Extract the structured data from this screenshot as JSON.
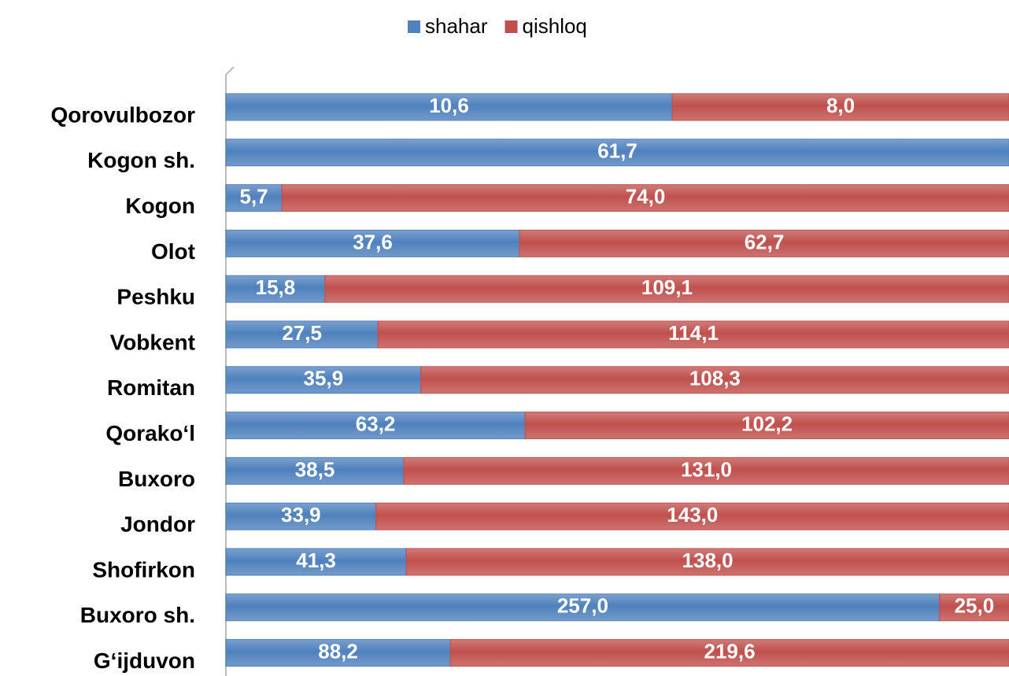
{
  "chart_data": {
    "type": "bar",
    "orientation": "horizontal",
    "stack": "percent",
    "legend": "top",
    "categories": [
      "Qorovulbozor",
      "Kogon sh.",
      "Kogon",
      "Olot",
      "Peshku",
      "Vobkent",
      "Romitan",
      "Qorako‘l",
      "Buxoro",
      "Jondor",
      "Shofirkon",
      "Buxoro sh.",
      "G‘ijduvon"
    ],
    "series": [
      {
        "name": "shahar",
        "color": "#4f81bd",
        "values": [
          10.6,
          61.7,
          5.7,
          37.6,
          15.8,
          27.5,
          35.9,
          63.2,
          38.5,
          33.9,
          41.3,
          257.0,
          88.2
        ],
        "value_labels": [
          "10,6",
          "61,7",
          "5,7",
          "37,6",
          "15,8",
          "27,5",
          "35,9",
          "63,2",
          "38,5",
          "33,9",
          "41,3",
          "257,0",
          "88,2"
        ]
      },
      {
        "name": "qishloq",
        "color": "#c0504d",
        "values": [
          8.0,
          null,
          74.0,
          62.7,
          109.1,
          114.1,
          108.3,
          102.2,
          131.0,
          143.0,
          138.0,
          25.0,
          219.6
        ],
        "value_labels": [
          "8,0",
          null,
          "74,0",
          "62,7",
          "109,1",
          "114,1",
          "108,3",
          "102,2",
          "131,0",
          "143,0",
          "138,0",
          "25,0",
          "219,6"
        ]
      }
    ]
  }
}
